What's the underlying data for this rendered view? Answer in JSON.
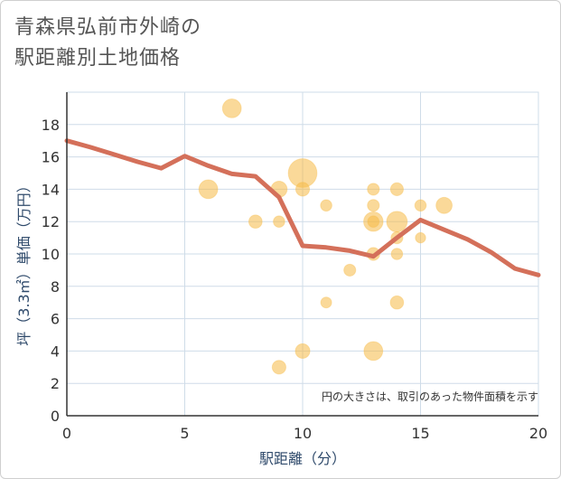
{
  "title": {
    "line1": "青森県弘前市外崎の",
    "line2": "駅距離別土地価格"
  },
  "colors": {
    "bubble": "#f5b945",
    "line": "#d4705a",
    "grid": "#cfdce8",
    "axis": "#333333"
  },
  "chart_data": {
    "type": "scatter",
    "title": "青森県弘前市外崎の駅距離別土地価格",
    "xlabel": "駅距離（分）",
    "ylabel": "坪（3.3㎡）単価（万円）",
    "xlim": [
      0,
      20
    ],
    "ylim": [
      0,
      20
    ],
    "xticks": [
      0,
      5,
      10,
      15,
      20
    ],
    "yticks": [
      0,
      2,
      4,
      6,
      8,
      10,
      12,
      14,
      16,
      18
    ],
    "grid": true,
    "note": "円の大きさは、取引のあった物件面積を示す",
    "points": [
      {
        "x": 7,
        "y": 19,
        "size": 3
      },
      {
        "x": 10,
        "y": 15,
        "size": 7
      },
      {
        "x": 6,
        "y": 14,
        "size": 3
      },
      {
        "x": 9,
        "y": 14,
        "size": 2.2
      },
      {
        "x": 10,
        "y": 14,
        "size": 1.6
      },
      {
        "x": 8,
        "y": 12,
        "size": 1.5
      },
      {
        "x": 9,
        "y": 12,
        "size": 1.1
      },
      {
        "x": 11,
        "y": 13,
        "size": 1.1
      },
      {
        "x": 13,
        "y": 14,
        "size": 1.2
      },
      {
        "x": 14,
        "y": 14,
        "size": 1.4
      },
      {
        "x": 13,
        "y": 13,
        "size": 1.2
      },
      {
        "x": 13,
        "y": 12,
        "size": 3.2
      },
      {
        "x": 14,
        "y": 12,
        "size": 3.6
      },
      {
        "x": 13,
        "y": 12,
        "size": 1.1
      },
      {
        "x": 15,
        "y": 13,
        "size": 1.1
      },
      {
        "x": 16,
        "y": 13,
        "size": 2.2
      },
      {
        "x": 14,
        "y": 11,
        "size": 1.2
      },
      {
        "x": 15,
        "y": 11,
        "size": 0.9
      },
      {
        "x": 13,
        "y": 10,
        "size": 1.4
      },
      {
        "x": 14,
        "y": 10,
        "size": 1.1
      },
      {
        "x": 12,
        "y": 9,
        "size": 1.2
      },
      {
        "x": 11,
        "y": 7,
        "size": 1.0
      },
      {
        "x": 14,
        "y": 7,
        "size": 1.5
      },
      {
        "x": 10,
        "y": 4,
        "size": 1.8
      },
      {
        "x": 13,
        "y": 4,
        "size": 3.0
      },
      {
        "x": 9,
        "y": 3,
        "size": 1.6
      }
    ],
    "series": [
      {
        "type": "line",
        "x": [
          0,
          1,
          2,
          3,
          4,
          5,
          6,
          7,
          8,
          9,
          10,
          11,
          12,
          13,
          14,
          15,
          16,
          17,
          18,
          19,
          20
        ],
        "y": [
          17.0,
          16.6,
          16.15,
          15.7,
          15.3,
          16.05,
          15.45,
          14.95,
          14.8,
          13.5,
          10.5,
          10.4,
          10.2,
          9.85,
          11.0,
          12.1,
          11.5,
          10.9,
          10.1,
          9.1,
          8.7
        ]
      }
    ]
  }
}
